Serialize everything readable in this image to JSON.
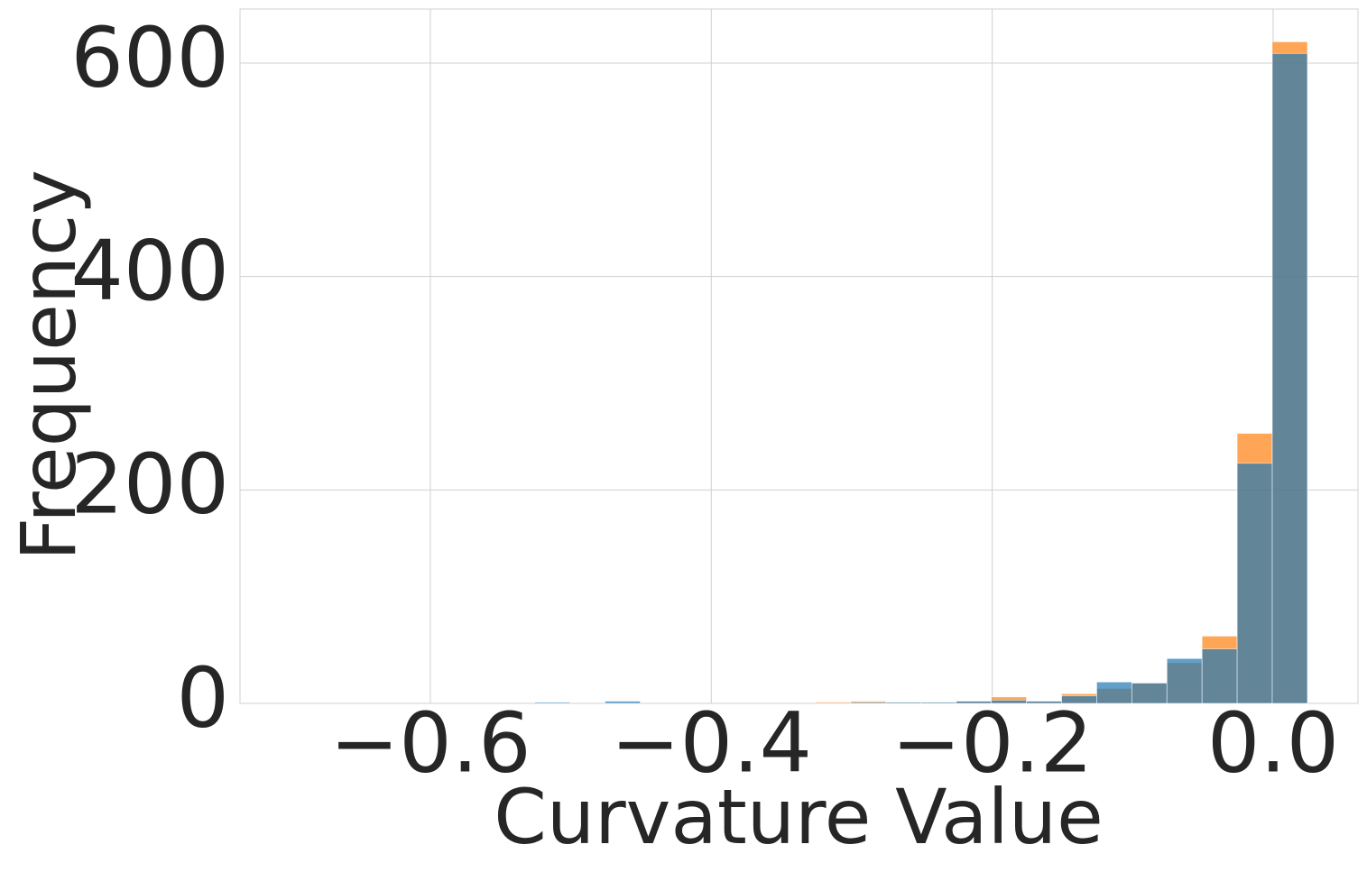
{
  "chart_data": {
    "type": "histogram",
    "x_label": "Curvature Value",
    "y_label": "Frequency",
    "bins": [
      -0.5256,
      -0.5006,
      -0.4756,
      -0.4506,
      -0.4256,
      -0.4006,
      -0.3756,
      -0.3506,
      -0.3256,
      -0.3006,
      -0.2756,
      -0.2506,
      -0.2256,
      -0.2006,
      -0.1756,
      -0.1506,
      -0.1256,
      -0.1006,
      -0.0756,
      -0.0506,
      -0.0256,
      -0.0006,
      0.0244
    ],
    "series": [
      {
        "color": "#ff7f0e",
        "values": [
          0,
          0,
          0,
          0,
          0,
          0,
          0,
          0,
          1,
          2,
          1,
          1,
          2,
          6,
          2,
          9,
          14,
          19,
          38,
          63,
          253,
          620
        ]
      },
      {
        "color": "#1f77b4",
        "values": [
          1,
          0,
          2,
          0,
          0,
          0,
          0,
          0,
          0,
          1,
          1,
          1,
          2,
          3,
          2,
          7,
          20,
          19,
          42,
          51,
          225,
          609
        ]
      }
    ],
    "xlim": [
      -0.7355,
      0.0604
    ],
    "ylim": [
      0,
      650.7
    ],
    "xticks": [
      {
        "value": -0.6,
        "label": "−0.6"
      },
      {
        "value": -0.4,
        "label": "−0.4"
      },
      {
        "value": -0.2,
        "label": "−0.2"
      },
      {
        "value": 0,
        "label": "0.0"
      }
    ],
    "yticks": [
      0,
      200,
      400,
      600
    ],
    "grid": true,
    "opacity": 0.7
  }
}
